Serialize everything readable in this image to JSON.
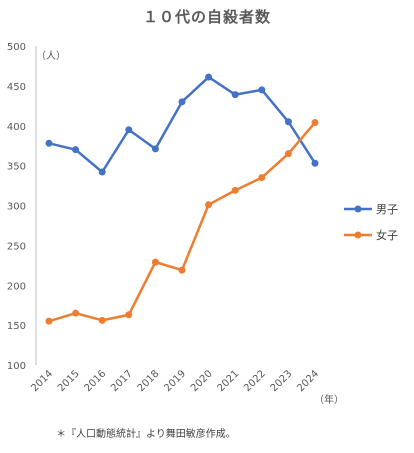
{
  "chart_data": {
    "type": "line",
    "title": "１０代の自殺者数",
    "ylabel": "（人）",
    "xlabel": "（年）",
    "x": [
      "2014",
      "2015",
      "2016",
      "2017",
      "2018",
      "2019",
      "2020",
      "2021",
      "2022",
      "2023",
      "2024"
    ],
    "ylim": [
      100,
      500
    ],
    "yticks": [
      "100",
      "150",
      "200",
      "250",
      "300",
      "350",
      "400",
      "450",
      "500"
    ],
    "grid": false,
    "legend": "right",
    "series": [
      {
        "name": "男子",
        "color": "#4472C4",
        "values": [
          378,
          370,
          342,
          395,
          371,
          430,
          461,
          439,
          445,
          405,
          353
        ]
      },
      {
        "name": "女子",
        "color": "#ED7D31",
        "values": [
          155,
          165,
          156,
          163,
          229,
          219,
          301,
          319,
          335,
          365,
          404
        ]
      }
    ],
    "footnote": "＊『人口動態統計』より舞田敏彦作成。"
  }
}
